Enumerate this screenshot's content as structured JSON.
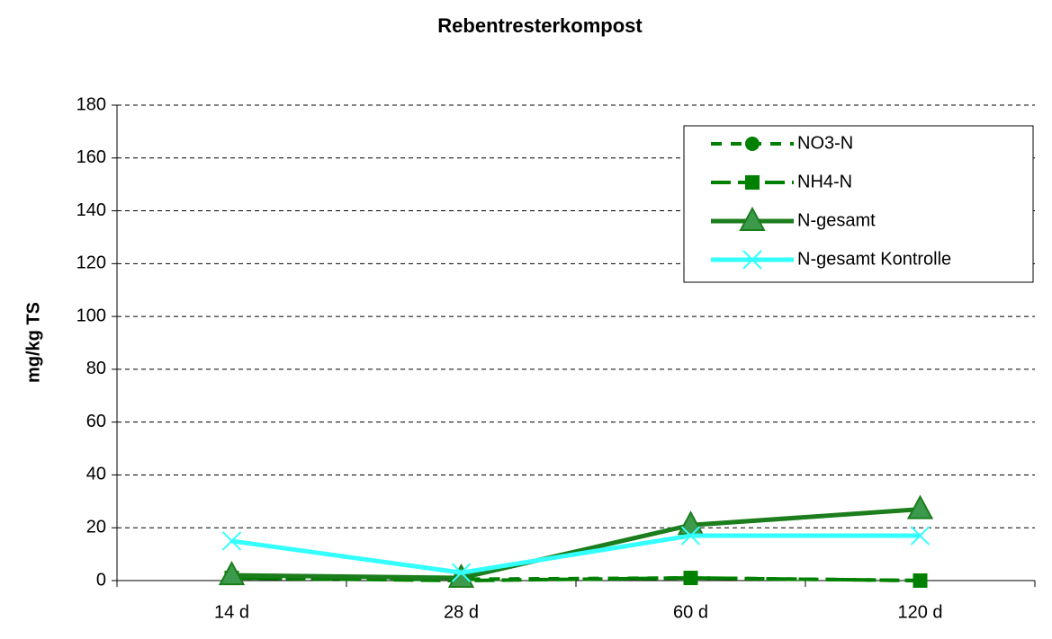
{
  "chart_data": {
    "type": "line",
    "title": "Rebentresterkompost",
    "y_label": "mg/kg TS",
    "categories": [
      "14 d",
      "28 d",
      "60 d",
      "120 d"
    ],
    "series": [
      {
        "name": "NO3-N",
        "color": "#008000",
        "dash": "12,10",
        "marker": "circle",
        "values": [
          1,
          0.5,
          1,
          0
        ]
      },
      {
        "name": "NH4-N",
        "color": "#008000",
        "dash": "22,8",
        "marker": "square",
        "values": [
          1,
          0,
          1,
          0
        ]
      },
      {
        "name": "N-gesamt",
        "color": "#1b7d1b",
        "marker": "triangle",
        "values": [
          2,
          1,
          21,
          27
        ]
      },
      {
        "name": "N-gesamt Kontrolle",
        "color": "#33ffff",
        "marker": "x",
        "values": [
          15,
          3,
          17,
          17
        ]
      }
    ],
    "ylim": [
      0,
      180
    ],
    "yticks": [
      0,
      20,
      40,
      60,
      80,
      100,
      120,
      140,
      160,
      180
    ],
    "grid": true,
    "legend": "top-right"
  }
}
